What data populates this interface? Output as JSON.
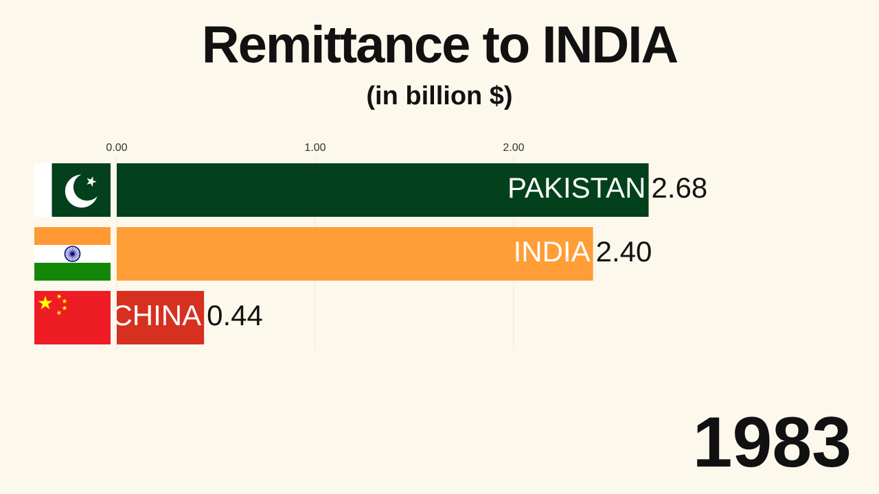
{
  "chart_data": {
    "type": "bar",
    "orientation": "horizontal",
    "title": "Remittance to INDIA",
    "subtitle": "(in billion $)",
    "year": "1983",
    "x_ticks": [
      0,
      1,
      2
    ],
    "x_tick_labels": [
      "0.00",
      "1.00",
      "2.00"
    ],
    "grid": true,
    "categories": [
      "PAKISTAN",
      "INDIA",
      "CHINA"
    ],
    "values": [
      2.68,
      2.4,
      0.44
    ],
    "value_labels": [
      "2.68",
      "2.40",
      "0.44"
    ],
    "colors": [
      "#03401c",
      "#ff9d36",
      "#d63020"
    ],
    "flags": [
      "pakistan-flag-icon",
      "india-flag-icon",
      "china-flag-icon"
    ]
  }
}
